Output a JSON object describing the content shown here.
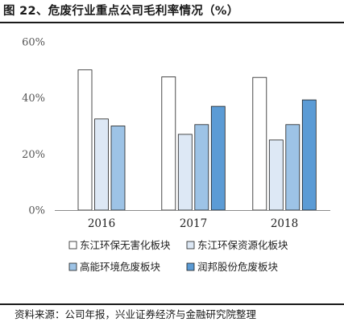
{
  "figure": {
    "title": "图 22、危废行业重点公司毛利率情况（%）",
    "source": "资料来源：公司年报，兴业证券经济与金融研究院整理"
  },
  "chart_data": {
    "type": "bar",
    "categories": [
      "2016",
      "2017",
      "2018"
    ],
    "y_ticks": [
      "0%",
      "20%",
      "40%",
      "60%"
    ],
    "ylim": [
      0,
      60
    ],
    "grid": false,
    "legend_position": "bottom",
    "series": [
      {
        "name": "东江环保无害化板块",
        "values": [
          50,
          47.5,
          47.3
        ],
        "color": "#ffffff"
      },
      {
        "name": "东江环保资源化板块",
        "values": [
          32.5,
          27,
          25
        ],
        "color": "#dde8f5"
      },
      {
        "name": "高能环境危废板块",
        "values": [
          30,
          30.5,
          30.5
        ],
        "color": "#9dc3e6"
      },
      {
        "name": "润邦股份危废板块",
        "values": [
          null,
          37,
          39.3
        ],
        "color": "#5b9bd5"
      }
    ]
  }
}
